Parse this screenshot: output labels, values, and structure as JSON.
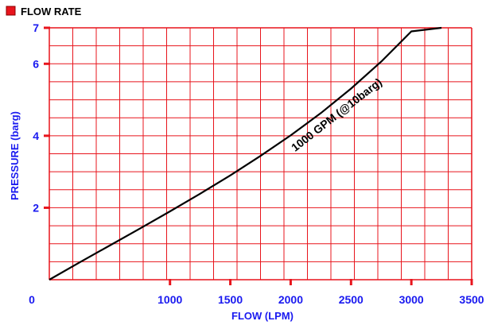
{
  "header": {
    "legend_label": "FLOW RATE",
    "legend_color": "#e8141c"
  },
  "chart_data": {
    "type": "line",
    "title": "FLOW RATE",
    "xlabel": "FLOW (LPM)",
    "ylabel": "PRESSURE (barg)",
    "xlim": [
      0,
      3500
    ],
    "ylim": [
      0,
      7
    ],
    "x_ticks": [
      0,
      1000,
      1500,
      2000,
      2500,
      3000,
      3500
    ],
    "y_ticks": [
      2,
      4,
      6,
      7
    ],
    "grid": true,
    "grid_color": "#e8141c",
    "tick_label_color": "#1a1af0",
    "line_color": "#000000",
    "series": [
      {
        "name": "1000 GPM (@10barg)",
        "x": [
          0,
          250,
          500,
          750,
          1000,
          1250,
          1500,
          1750,
          2000,
          2250,
          2500,
          2750,
          3000,
          3250
        ],
        "y": [
          0,
          0.48,
          0.95,
          1.42,
          1.9,
          2.39,
          2.9,
          3.44,
          4.01,
          4.63,
          5.31,
          6.06,
          6.9,
          7.0
        ]
      }
    ],
    "annotations": [
      {
        "text": "1000 GPM (@10barg)",
        "x": 2400,
        "y": 4.5
      }
    ]
  }
}
